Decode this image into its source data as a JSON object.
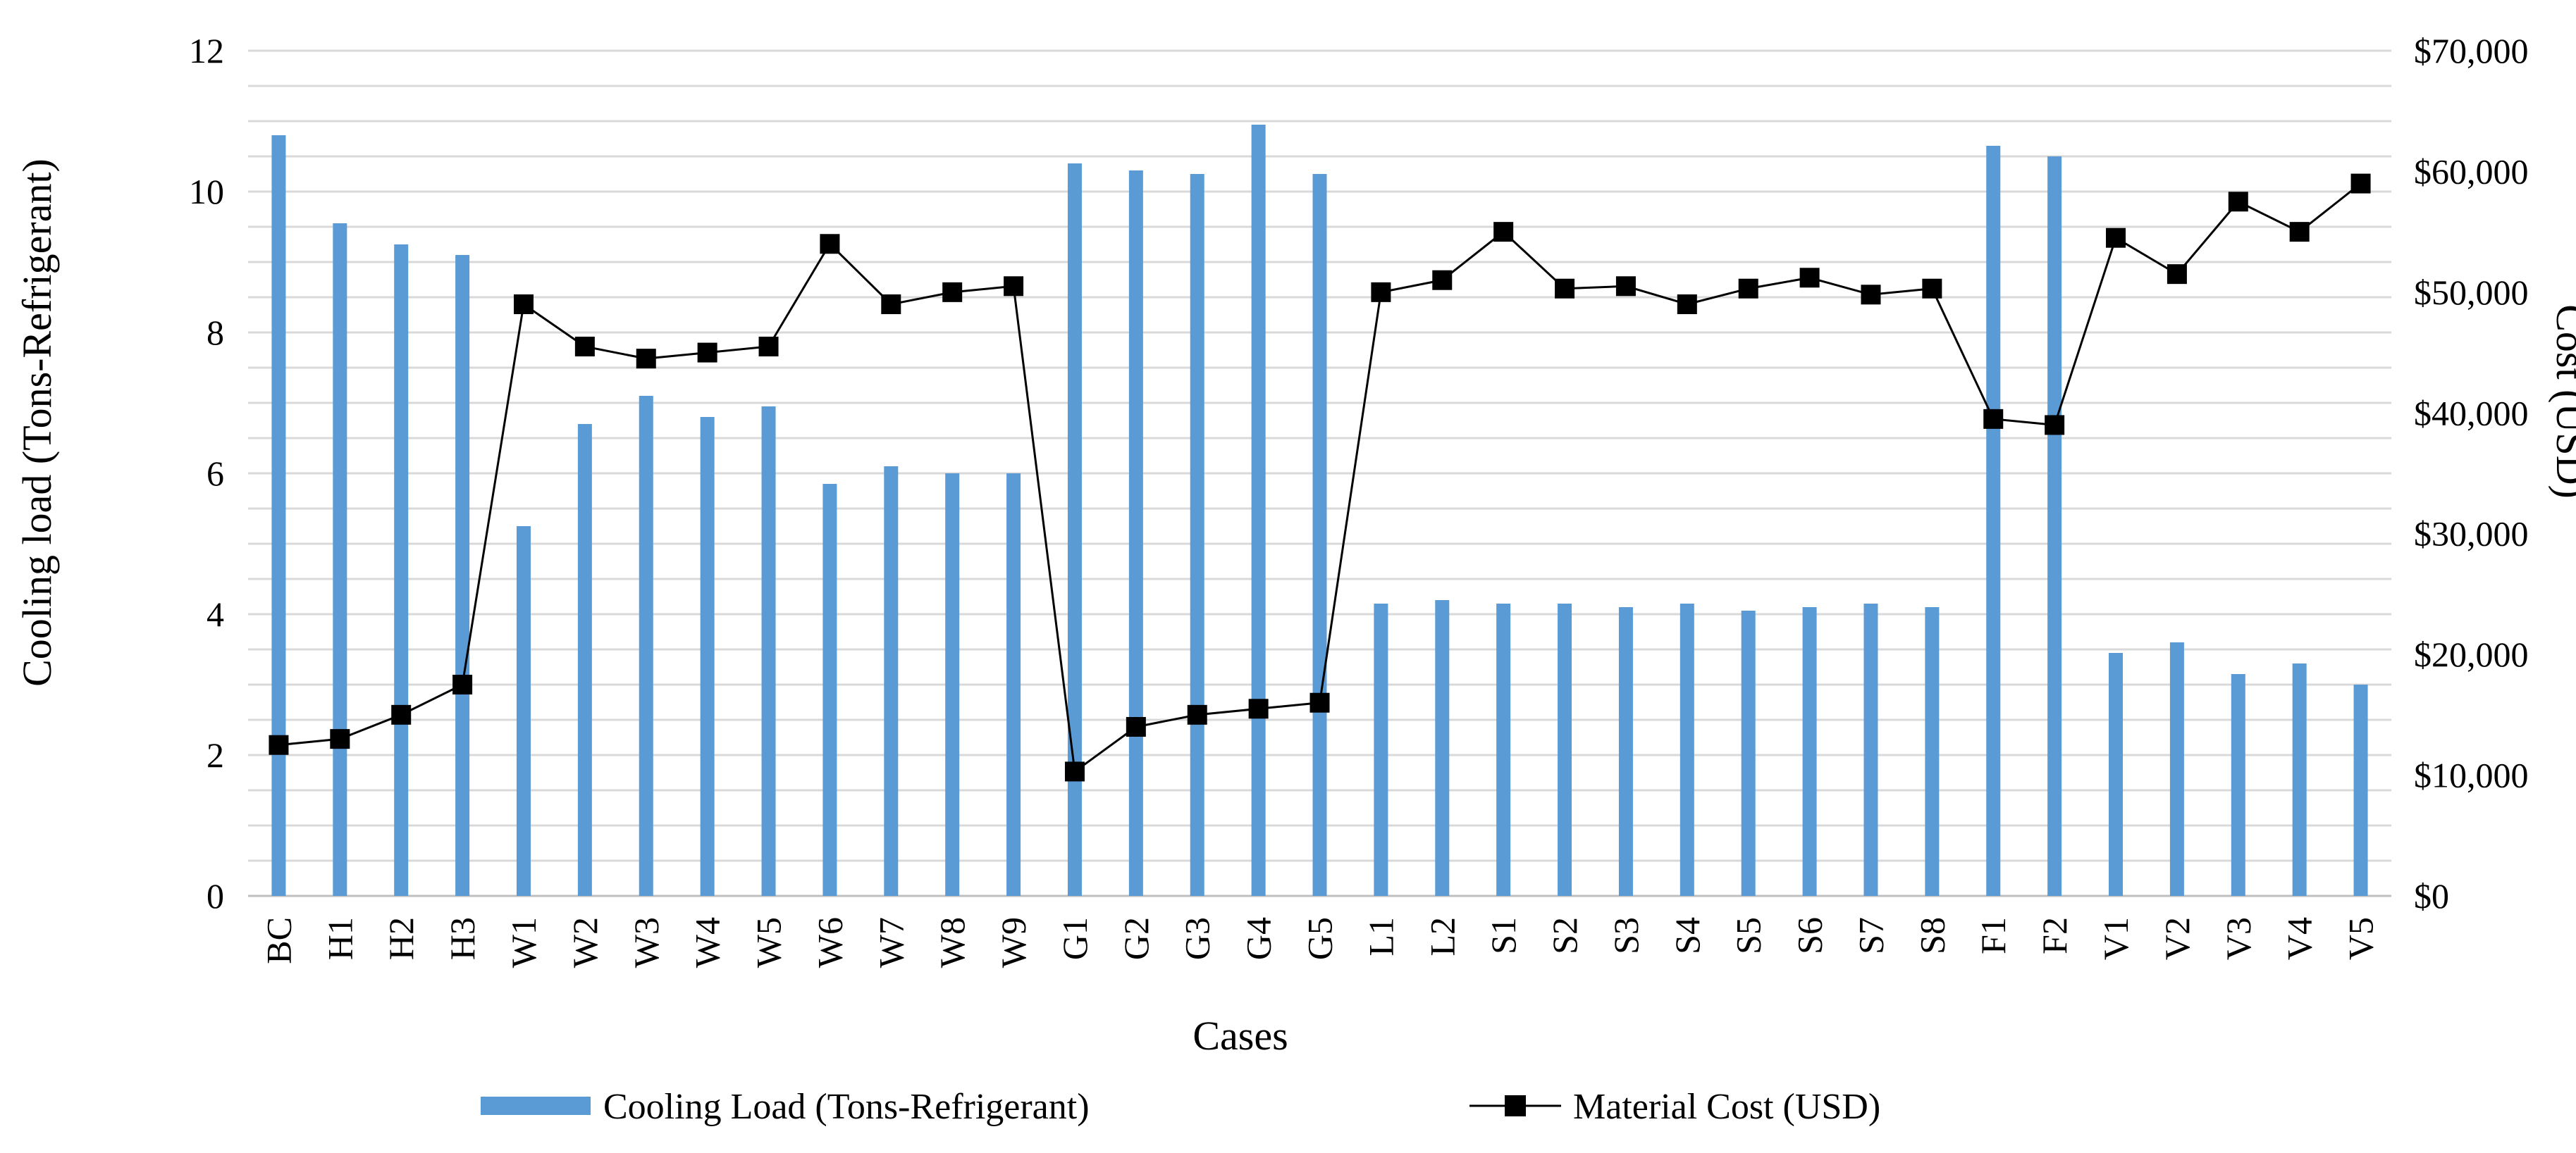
{
  "chart_data": {
    "type": "bar+line",
    "categories": [
      "BC",
      "H1",
      "H2",
      "H3",
      "W1",
      "W2",
      "W3",
      "W4",
      "W5",
      "W6",
      "W7",
      "W8",
      "W9",
      "G1",
      "G2",
      "G3",
      "G4",
      "G5",
      "L1",
      "L2",
      "S1",
      "S2",
      "S3",
      "S4",
      "S5",
      "S6",
      "S7",
      "S8",
      "F1",
      "F2",
      "V1",
      "V2",
      "V3",
      "V4",
      "V5"
    ],
    "series": [
      {
        "name": "Cooling Load (Tons-Refrigerant)",
        "kind": "bar",
        "axis": "left",
        "color": "#5b9bd5",
        "values": [
          10.8,
          9.55,
          9.25,
          9.1,
          5.25,
          6.7,
          7.1,
          6.8,
          6.95,
          5.85,
          6.1,
          6.0,
          6.0,
          10.4,
          10.3,
          10.25,
          10.95,
          10.25,
          4.15,
          4.2,
          4.15,
          4.15,
          4.1,
          4.15,
          4.05,
          4.1,
          4.15,
          4.1,
          10.65,
          10.5,
          3.45,
          3.6,
          3.15,
          3.3,
          3.0
        ]
      },
      {
        "name": "Material Cost (USD)",
        "kind": "line",
        "axis": "right",
        "color": "#000000",
        "values": [
          12500,
          13000,
          15000,
          17500,
          49000,
          45500,
          44500,
          45000,
          45500,
          54000,
          49000,
          50000,
          50500,
          10300,
          14000,
          15000,
          15500,
          16000,
          50000,
          51000,
          55000,
          50300,
          50500,
          49000,
          50300,
          51200,
          49800,
          50300,
          39500,
          39000,
          54500,
          51500,
          57500,
          55000,
          59000
        ]
      }
    ],
    "xlabel": "Cases",
    "ylabel": "Cooling load (Tons-Refrigerant)",
    "y2label": "Cost (USD)",
    "ylim": [
      0,
      12
    ],
    "y2lim": [
      0,
      70000
    ],
    "yticks": [
      "0",
      "2",
      "4",
      "6",
      "8",
      "10",
      "12"
    ],
    "y2ticks": [
      "$0",
      "$10,000",
      "$20,000",
      "$30,000",
      "$40,000",
      "$50,000",
      "$60,000",
      "$70,000"
    ],
    "grid": true,
    "legend": "bottom"
  }
}
